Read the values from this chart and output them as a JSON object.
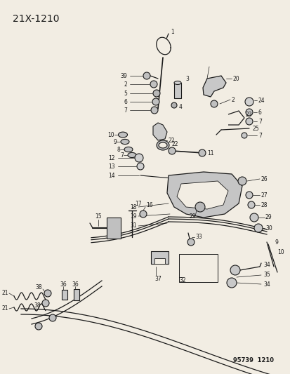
{
  "title": "21X-1210",
  "footer": "95739  1210",
  "bg": "#f2ede3",
  "lc": "#1a1a1a",
  "tc": "#1a1a1a",
  "fw": 4.14,
  "fh": 5.33,
  "dpi": 100
}
